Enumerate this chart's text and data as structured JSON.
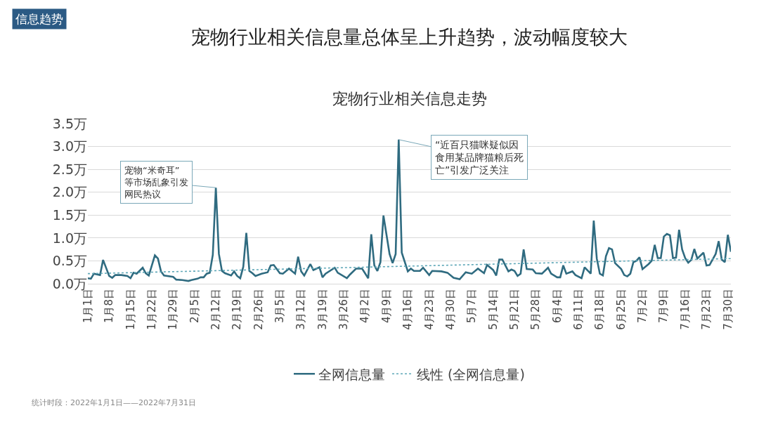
{
  "chart_data": {
    "type": "line",
    "title": "宠物行业相关信息量总体呈上升趋势，波动幅度较大",
    "subtitle": "宠物行业相关信息走势",
    "annotations": [
      "信息趋势",
      "统计时段：2022年1月1日——2022年7月31日",
      {
        "text": "宠物“米奇耳”等市场乱象引发网民热议",
        "x": "2022-02-12",
        "y": 2.1
      },
      {
        "text": "“近百只猫咪疑似因食用某品牌猫粮后死亡”引发广泛关注",
        "x": "2022-04-13",
        "y": 3.15
      }
    ],
    "xlim": [
      "2022-01-01",
      "2022-07-31"
    ],
    "xticks": [
      {
        "value": "2022-01-01",
        "label": "1月1日"
      },
      {
        "value": "2022-01-08",
        "label": "1月8日"
      },
      {
        "value": "2022-01-15",
        "label": "1月15日"
      },
      {
        "value": "2022-01-22",
        "label": "1月22日"
      },
      {
        "value": "2022-01-29",
        "label": "1月29日"
      },
      {
        "value": "2022-02-05",
        "label": "2月5日"
      },
      {
        "value": "2022-02-12",
        "label": "2月12日"
      },
      {
        "value": "2022-02-19",
        "label": "2月19日"
      },
      {
        "value": "2022-02-26",
        "label": "2月26日"
      },
      {
        "value": "2022-03-05",
        "label": "3月5日"
      },
      {
        "value": "2022-03-12",
        "label": "3月12日"
      },
      {
        "value": "2022-03-19",
        "label": "3月19日"
      },
      {
        "value": "2022-03-26",
        "label": "3月26日"
      },
      {
        "value": "2022-04-02",
        "label": "4月2日"
      },
      {
        "value": "2022-04-09",
        "label": "4月9日"
      },
      {
        "value": "2022-04-16",
        "label": "4月16日"
      },
      {
        "value": "2022-04-23",
        "label": "4月23日"
      },
      {
        "value": "2022-04-30",
        "label": "4月30日"
      },
      {
        "value": "2022-05-07",
        "label": "5月7日"
      },
      {
        "value": "2022-05-14",
        "label": "5月14日"
      },
      {
        "value": "2022-05-21",
        "label": "5月21日"
      },
      {
        "value": "2022-05-28",
        "label": "5月28日"
      },
      {
        "value": "2022-06-04",
        "label": "6月4日"
      },
      {
        "value": "2022-06-11",
        "label": "6月11日"
      },
      {
        "value": "2022-06-18",
        "label": "6月18日"
      },
      {
        "value": "2022-06-25",
        "label": "6月25日"
      },
      {
        "value": "2022-07-02",
        "label": "7月2日"
      },
      {
        "value": "2022-07-09",
        "label": "7月9日"
      },
      {
        "value": "2022-07-16",
        "label": "7月16日"
      },
      {
        "value": "2022-07-23",
        "label": "7月23日"
      },
      {
        "value": "2022-07-30",
        "label": "7月30日"
      }
    ],
    "ylim": [
      0,
      3.5
    ],
    "yticks": [
      {
        "value": 0,
        "label": "0.0万"
      },
      {
        "value": 0.5,
        "label": "0.5万"
      },
      {
        "value": 1,
        "label": "1.0万"
      },
      {
        "value": 1.5,
        "label": "1.5万"
      },
      {
        "value": 2,
        "label": "2.0万"
      },
      {
        "value": 2.5,
        "label": "2.5万"
      },
      {
        "value": 3,
        "label": "3.0万"
      },
      {
        "value": 3.5,
        "label": "3.5万"
      }
    ],
    "grid": "y",
    "legend": "bottom",
    "series": [
      {
        "name": "全网信息量",
        "color": "#2f6b80",
        "line_style": "solid",
        "x": [
          "2022-01-01",
          "2022-01-02",
          "2022-01-03",
          "2022-01-05",
          "2022-01-06",
          "2022-01-08",
          "2022-01-09",
          "2022-01-10",
          "2022-01-12",
          "2022-01-14",
          "2022-01-15",
          "2022-01-16",
          "2022-01-17",
          "2022-01-19",
          "2022-01-20",
          "2022-01-21",
          "2022-01-23",
          "2022-01-24",
          "2022-01-25",
          "2022-01-26",
          "2022-01-29",
          "2022-01-30",
          "2022-02-01",
          "2022-02-03",
          "2022-02-04",
          "2022-02-06",
          "2022-02-07",
          "2022-02-08",
          "2022-02-09",
          "2022-02-10",
          "2022-02-11",
          "2022-02-12",
          "2022-02-13",
          "2022-02-14",
          "2022-02-15",
          "2022-02-17",
          "2022-02-18",
          "2022-02-19",
          "2022-02-20",
          "2022-02-21",
          "2022-02-22",
          "2022-02-23",
          "2022-02-24",
          "2022-02-25",
          "2022-02-27",
          "2022-03-01",
          "2022-03-02",
          "2022-03-03",
          "2022-03-05",
          "2022-03-06",
          "2022-03-08",
          "2022-03-10",
          "2022-03-11",
          "2022-03-12",
          "2022-03-13",
          "2022-03-15",
          "2022-03-16",
          "2022-03-18",
          "2022-03-19",
          "2022-03-20",
          "2022-03-23",
          "2022-03-24",
          "2022-03-27",
          "2022-03-28",
          "2022-03-30",
          "2022-04-01",
          "2022-04-03",
          "2022-04-04",
          "2022-04-05",
          "2022-04-06",
          "2022-04-07",
          "2022-04-08",
          "2022-04-10",
          "2022-04-11",
          "2022-04-12",
          "2022-04-13",
          "2022-04-14",
          "2022-04-16",
          "2022-04-17",
          "2022-04-18",
          "2022-04-20",
          "2022-04-21",
          "2022-04-23",
          "2022-04-24",
          "2022-04-27",
          "2022-04-29",
          "2022-05-01",
          "2022-05-03",
          "2022-05-05",
          "2022-05-07",
          "2022-05-09",
          "2022-05-11",
          "2022-05-12",
          "2022-05-14",
          "2022-05-15",
          "2022-05-16",
          "2022-05-17",
          "2022-05-19",
          "2022-05-20",
          "2022-05-21",
          "2022-05-22",
          "2022-05-23",
          "2022-05-24",
          "2022-05-25",
          "2022-05-27",
          "2022-05-28",
          "2022-05-30",
          "2022-06-01",
          "2022-06-02",
          "2022-06-04",
          "2022-06-05",
          "2022-06-06",
          "2022-06-07",
          "2022-06-09",
          "2022-06-10",
          "2022-06-12",
          "2022-06-13",
          "2022-06-15",
          "2022-06-16",
          "2022-06-17",
          "2022-06-18",
          "2022-06-19",
          "2022-06-20",
          "2022-06-21",
          "2022-06-22",
          "2022-06-23",
          "2022-06-25",
          "2022-06-26",
          "2022-06-27",
          "2022-06-28",
          "2022-06-29",
          "2022-06-30",
          "2022-07-01",
          "2022-07-02",
          "2022-07-04",
          "2022-07-05",
          "2022-07-06",
          "2022-07-07",
          "2022-07-08",
          "2022-07-09",
          "2022-07-10",
          "2022-07-11",
          "2022-07-12",
          "2022-07-13",
          "2022-07-14",
          "2022-07-15",
          "2022-07-16",
          "2022-07-17",
          "2022-07-18",
          "2022-07-19",
          "2022-07-20",
          "2022-07-22",
          "2022-07-23",
          "2022-07-24",
          "2022-07-26",
          "2022-07-27",
          "2022-07-28",
          "2022-07-29",
          "2022-07-30",
          "2022-07-31"
        ],
        "values": [
          0.12,
          0.11,
          0.22,
          0.19,
          0.52,
          0.17,
          0.13,
          0.19,
          0.19,
          0.17,
          0.12,
          0.24,
          0.22,
          0.35,
          0.23,
          0.18,
          0.62,
          0.55,
          0.27,
          0.18,
          0.15,
          0.09,
          0.08,
          0.06,
          0.08,
          0.11,
          0.14,
          0.14,
          0.22,
          0.24,
          0.63,
          2.1,
          0.65,
          0.28,
          0.23,
          0.18,
          0.27,
          0.17,
          0.12,
          0.37,
          1.11,
          0.28,
          0.23,
          0.17,
          0.22,
          0.25,
          0.4,
          0.41,
          0.23,
          0.22,
          0.33,
          0.22,
          0.59,
          0.27,
          0.18,
          0.43,
          0.3,
          0.36,
          0.14,
          0.22,
          0.35,
          0.24,
          0.12,
          0.2,
          0.33,
          0.33,
          0.12,
          1.08,
          0.4,
          0.28,
          0.47,
          1.49,
          0.65,
          0.45,
          0.65,
          3.15,
          0.68,
          0.27,
          0.33,
          0.28,
          0.28,
          0.35,
          0.19,
          0.28,
          0.27,
          0.24,
          0.13,
          0.1,
          0.25,
          0.22,
          0.33,
          0.23,
          0.41,
          0.3,
          0.18,
          0.53,
          0.53,
          0.27,
          0.31,
          0.28,
          0.17,
          0.22,
          0.75,
          0.32,
          0.31,
          0.23,
          0.22,
          0.35,
          0.22,
          0.14,
          0.14,
          0.4,
          0.22,
          0.27,
          0.19,
          0.12,
          0.36,
          0.22,
          1.38,
          0.55,
          0.22,
          0.18,
          0.6,
          0.78,
          0.75,
          0.45,
          0.32,
          0.19,
          0.16,
          0.22,
          0.47,
          0.5,
          0.58,
          0.32,
          0.43,
          0.5,
          0.85,
          0.56,
          0.56,
          1.03,
          1.09,
          1.06,
          0.56,
          0.57,
          1.18,
          0.75,
          0.56,
          0.46,
          0.52,
          0.76,
          0.55,
          0.68,
          0.4,
          0.41,
          0.65,
          0.93,
          0.53,
          0.47,
          1.07,
          0.7
        ]
      },
      {
        "name": "线性 (全网信息量)",
        "color": "#5fa8b8",
        "type": "line",
        "line_style": "dotted",
        "x": [
          "2022-01-01",
          "2022-07-31"
        ],
        "values": [
          0.22,
          0.55
        ]
      }
    ]
  }
}
